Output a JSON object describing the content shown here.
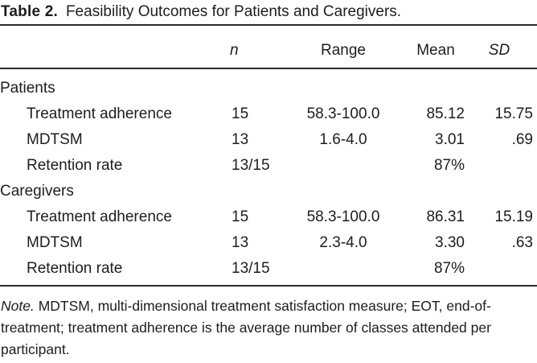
{
  "caption": {
    "label": "Table 2.",
    "text": "Feasibility Outcomes for Patients and Caregivers."
  },
  "columns": [
    "n",
    "Range",
    "Mean",
    "SD"
  ],
  "rows": [
    {
      "label": "Patients",
      "type": "section",
      "n": "",
      "range": "",
      "mean": "",
      "sd": ""
    },
    {
      "label": "Treatment adherence",
      "type": "data",
      "n": "15",
      "range": "58.3-100.0",
      "mean": "85.12",
      "sd": "15.75"
    },
    {
      "label": "MDTSM",
      "type": "data",
      "n": "13",
      "range": "1.6-4.0",
      "mean": "3.01",
      "sd": ".69"
    },
    {
      "label": "Retention rate",
      "type": "data",
      "n": "13/15",
      "range": "",
      "mean": "87%",
      "sd": ""
    },
    {
      "label": "Caregivers",
      "type": "section",
      "n": "",
      "range": "",
      "mean": "",
      "sd": ""
    },
    {
      "label": "Treatment adherence",
      "type": "data",
      "n": "15",
      "range": "58.3-100.0",
      "mean": "86.31",
      "sd": "15.19"
    },
    {
      "label": "MDTSM",
      "type": "data",
      "n": "13",
      "range": "2.3-4.0",
      "mean": "3.30",
      "sd": ".63"
    },
    {
      "label": "Retention rate",
      "type": "data",
      "n": "13/15",
      "range": "",
      "mean": "87%",
      "sd": ""
    }
  ],
  "note": {
    "label": "Note.",
    "text": "MDTSM, multi-dimensional treatment satisfaction measure; EOT, end-of-treatment; treatment adherence is the average number of classes attended per participant."
  },
  "colors": {
    "text": "#1d1d1d",
    "rule": "#2b2b2b",
    "background": "#ffffff"
  }
}
